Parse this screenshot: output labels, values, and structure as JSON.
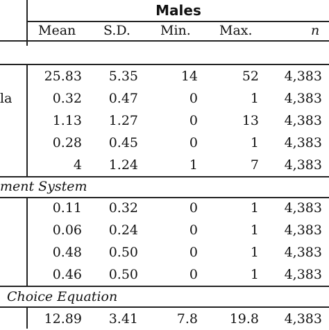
{
  "header": {
    "group": "Males",
    "columns": [
      "Mean",
      "S.D.",
      "Min.",
      "Max.",
      "n"
    ]
  },
  "sections": [
    {
      "label": "",
      "rows": [
        {
          "label": "",
          "values": [
            "25.83",
            "5.35",
            "14",
            "52",
            "4,383"
          ]
        },
        {
          "label": "la",
          "values": [
            "0.32",
            "0.47",
            "0",
            "1",
            "4,383"
          ]
        },
        {
          "label": "",
          "values": [
            "1.13",
            "1.27",
            "0",
            "13",
            "4,383"
          ]
        },
        {
          "label": "",
          "values": [
            "0.28",
            "0.45",
            "0",
            "1",
            "4,383"
          ]
        },
        {
          "label": "",
          "values": [
            "4",
            "1.24",
            "1",
            "7",
            "4,383"
          ]
        }
      ]
    },
    {
      "label": "ment System",
      "rows": [
        {
          "label": "",
          "values": [
            "0.11",
            "0.32",
            "0",
            "1",
            "4,383"
          ]
        },
        {
          "label": "",
          "values": [
            "0.06",
            "0.24",
            "0",
            "1",
            "4,383"
          ]
        },
        {
          "label": "",
          "values": [
            "0.48",
            "0.50",
            "0",
            "1",
            "4,383"
          ]
        },
        {
          "label": "",
          "values": [
            "0.46",
            "0.50",
            "0",
            "1",
            "4,383"
          ]
        }
      ]
    },
    {
      "label": "Choice Equation",
      "rows": [
        {
          "label": "",
          "values": [
            "12.89",
            "3.41",
            "7.8",
            "19.8",
            "4,383"
          ]
        }
      ]
    }
  ]
}
